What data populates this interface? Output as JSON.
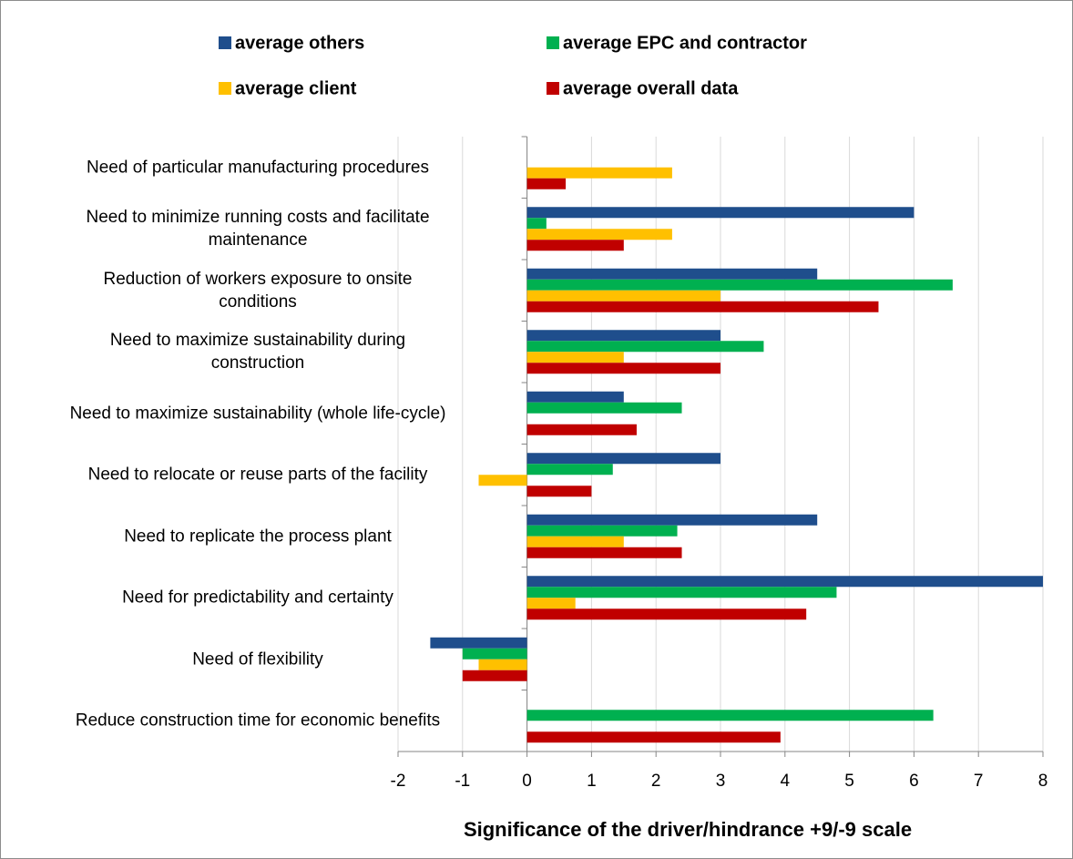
{
  "chart_data": {
    "type": "hbar",
    "x_label": "Significance of the driver/hindrance  +9/-9 scale",
    "categories": [
      "Need of particular manufacturing procedures",
      "Need to minimize running costs and facilitate\nmaintenance",
      "Reduction of workers exposure to onsite\nconditions",
      "Need to maximize sustainability during\nconstruction",
      "Need to maximize sustainability (whole life-cycle)",
      "Need to relocate or reuse parts of the facility",
      "Need to replicate the process plant",
      "Need for predictability and certainty",
      "Need of flexibility",
      "Reduce construction time for economic benefits"
    ],
    "series": [
      {
        "name": "average others",
        "color": "#1f4e8c",
        "values": [
          0,
          6,
          4.5,
          3,
          1.5,
          3,
          4.5,
          8,
          -1.5,
          0
        ]
      },
      {
        "name": "average EPC and contractor",
        "color": "#00b050",
        "values": [
          0,
          0.3,
          6.6,
          3.67,
          2.4,
          1.33,
          2.33,
          4.8,
          -1,
          6.3
        ]
      },
      {
        "name": "average client",
        "color": "#ffc000",
        "values": [
          2.25,
          2.25,
          3,
          1.5,
          0,
          -0.75,
          1.5,
          0.75,
          -0.75,
          0
        ]
      },
      {
        "name": "average overall data",
        "color": "#c00000",
        "values": [
          0.6,
          1.5,
          5.45,
          3,
          1.7,
          1,
          2.4,
          4.33,
          -1,
          3.93
        ]
      }
    ],
    "xlim": [
      -2,
      8
    ],
    "xticks": [
      -2,
      -1,
      0,
      1,
      2,
      3,
      4,
      5,
      6,
      7,
      8
    ],
    "grid": true
  }
}
